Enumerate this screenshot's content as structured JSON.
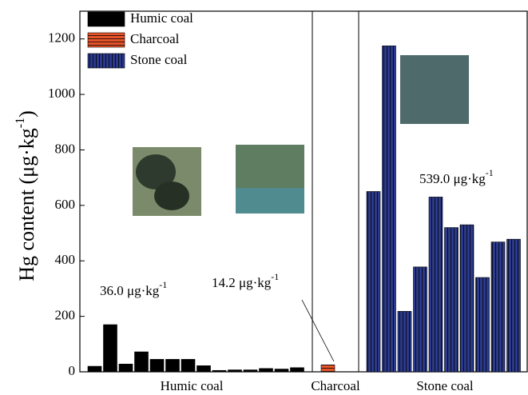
{
  "chart_data": {
    "type": "bar",
    "y_label": {
      "text": "Hg content (μg·kg",
      "sup": "-1",
      "tail": ")"
    },
    "ylim": [
      0,
      1300
    ],
    "yticks": [
      0,
      200,
      400,
      600,
      800,
      1000,
      1200
    ],
    "series": [
      {
        "name": "Humic coal",
        "color": "#000000",
        "values": [
          20,
          170,
          28,
          72,
          45,
          45,
          45,
          22,
          5,
          7,
          7,
          12,
          10,
          15
        ]
      },
      {
        "name": "Charcoal",
        "color": "#e8542a",
        "values": [
          25
        ]
      },
      {
        "name": "Stone coal",
        "color": "#2b3a8c",
        "values": [
          650,
          1175,
          218,
          378,
          630,
          520,
          530,
          340,
          468,
          478
        ]
      }
    ],
    "annotations": [
      {
        "text": "36.0 μg·kg",
        "sup": "-1"
      },
      {
        "text": "14.2 μg·kg",
        "sup": "-1"
      },
      {
        "text": "539.0 μg·kg",
        "sup": "-1"
      }
    ]
  }
}
